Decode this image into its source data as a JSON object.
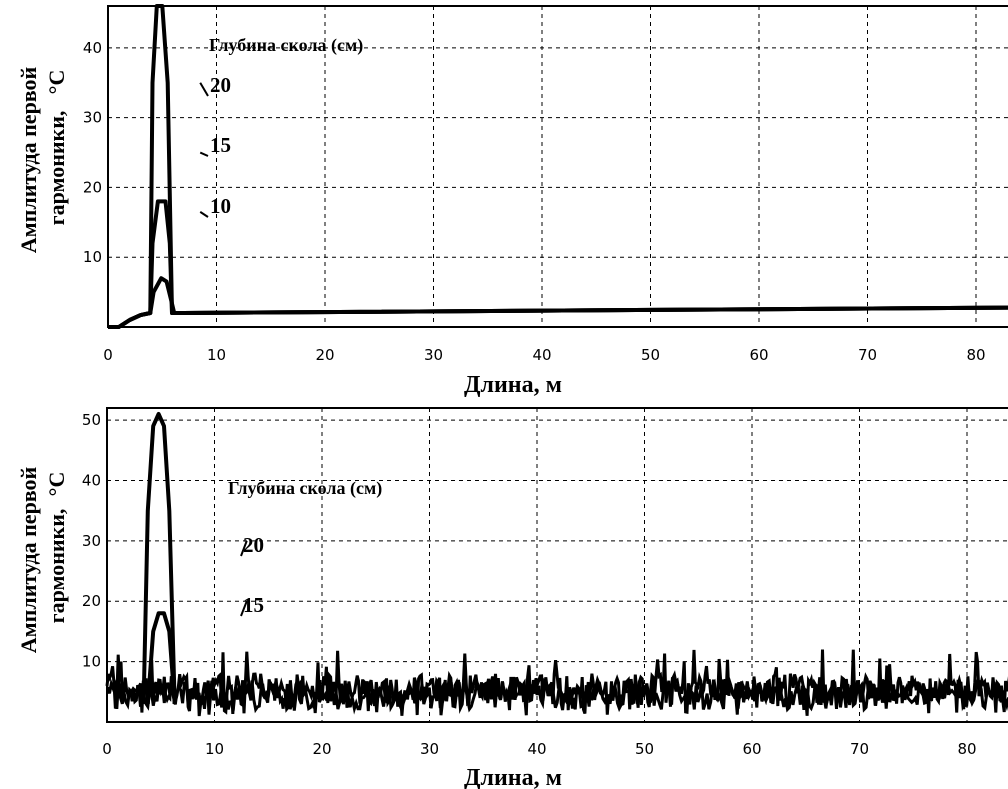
{
  "chart_data": [
    {
      "type": "line",
      "xlabel": "Длина, м",
      "ylabel_line1": "Амплитуда первой",
      "ylabel_line2": "гармоники,",
      "ylabel_unit": "°С",
      "xlim": [
        0,
        84
      ],
      "ylim": [
        0,
        46
      ],
      "xticks": [
        0,
        10,
        20,
        30,
        40,
        50,
        60,
        70,
        80
      ],
      "yticks": [
        10,
        20,
        30,
        40
      ],
      "grid": true,
      "legend_title": "Глубина скола (см)",
      "series": [
        {
          "name": "20",
          "x": [
            0,
            1,
            2,
            3,
            3.9,
            4.1,
            4.5,
            5.0,
            5.5,
            5.9,
            6.1,
            7,
            84
          ],
          "y": [
            0,
            0,
            1,
            1.7,
            2,
            35,
            46,
            46,
            35,
            2,
            2,
            2,
            2.8
          ]
        },
        {
          "name": "15",
          "x": [
            0,
            1,
            2,
            3,
            3.9,
            4.1,
            4.6,
            5.3,
            5.7,
            5.9,
            6.1,
            7,
            84
          ],
          "y": [
            0,
            0,
            1,
            1.7,
            2,
            12,
            18,
            18,
            12,
            2,
            2,
            2,
            2.8
          ]
        },
        {
          "name": "10",
          "x": [
            0,
            1,
            2,
            3,
            3.9,
            4.2,
            4.9,
            5.4,
            5.8,
            6.1,
            7,
            84
          ],
          "y": [
            0,
            0,
            1,
            1.7,
            2,
            5,
            7,
            6.5,
            4,
            2,
            2,
            2.8
          ]
        }
      ],
      "annotations": [
        {
          "text": "20",
          "x": 8.5,
          "y": 35
        },
        {
          "text": "15",
          "x": 8.5,
          "y": 25
        },
        {
          "text": "10",
          "x": 8.5,
          "y": 16.5
        }
      ]
    },
    {
      "type": "line",
      "xlabel": "Длина, м",
      "ylabel_line1": "Амплитуда первой",
      "ylabel_line2": "гармоники,",
      "ylabel_unit": "°С",
      "xlim": [
        0,
        84
      ],
      "ylim": [
        0,
        52
      ],
      "xticks": [
        0,
        10,
        20,
        30,
        40,
        50,
        60,
        70,
        80
      ],
      "yticks": [
        10,
        20,
        30,
        40,
        50
      ],
      "grid": true,
      "legend_title": "Глубина скола (см)",
      "series": [
        {
          "name": "20",
          "x": [
            3.4,
            3.8,
            4.3,
            4.8,
            5.3,
            5.8,
            6.3
          ],
          "y": [
            3,
            35,
            49,
            51,
            49,
            35,
            3
          ]
        },
        {
          "name": "15",
          "x": [
            3.8,
            4.3,
            4.8,
            5.3,
            5.8,
            6.3
          ],
          "y": [
            3,
            15,
            18,
            18,
            15,
            3
          ]
        }
      ],
      "noise": {
        "y_min": 1,
        "y_max": 12,
        "typical": [
          3,
          8
        ]
      },
      "annotations": [
        {
          "text": "20",
          "x": 13,
          "y": 30
        },
        {
          "text": "15",
          "x": 13,
          "y": 20
        }
      ]
    }
  ]
}
